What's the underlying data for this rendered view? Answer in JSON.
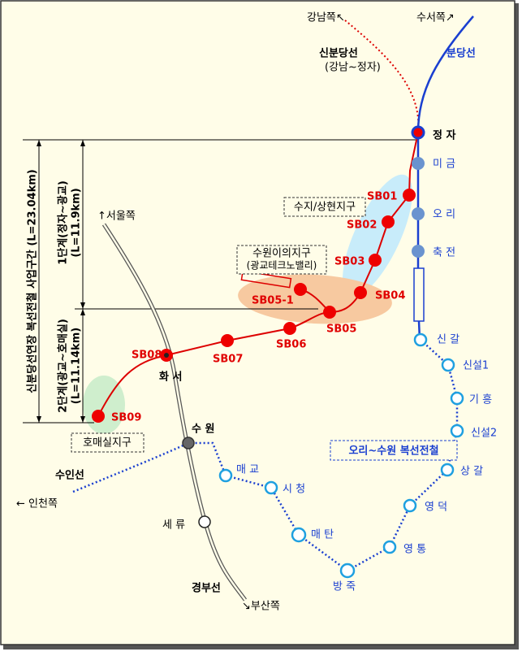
{
  "directions": {
    "gangnam": "강남쪽↖",
    "suseo": "수서쪽↗",
    "seoul": "↑서울쪽",
    "incheon": "← 인천쪽",
    "busan": "↘부산쪽"
  },
  "lines": {
    "sinbundang": "신분당선",
    "sinbundang_section": "(강남~정자)",
    "bundang": "분당선",
    "suin": "수인선",
    "gyeongbu": "경부선",
    "double_track": "오리~수원 복선전철"
  },
  "districts": {
    "suji": "수지/상현지구",
    "iui": "수원이의지구",
    "iui_sub": "(광교테크노밸리)",
    "homaesil": "호매실지구"
  },
  "sections": {
    "total": "신분당선연장 복선전철 사업구간 (L=23.04km)",
    "phase1": "1단계(정자~광교)",
    "phase1_length": "(L=11.9km)",
    "phase2": "2단계(광교~호매실)",
    "phase2_length": "(L=11.14km)"
  },
  "new_stations": [
    "SB01",
    "SB02",
    "SB03",
    "SB04",
    "SB05",
    "SB05-1",
    "SB06",
    "SB07",
    "SB08",
    "SB09"
  ],
  "stations": [
    "정 자",
    "미 금",
    "오 리",
    "축 전",
    "신 갈",
    "신설1",
    "기 흥",
    "신설2",
    "상 갈",
    "영 덕",
    "영 통",
    "방 죽",
    "매 탄",
    "시 청",
    "매 교",
    "수 원",
    "세 류",
    "화 서"
  ]
}
